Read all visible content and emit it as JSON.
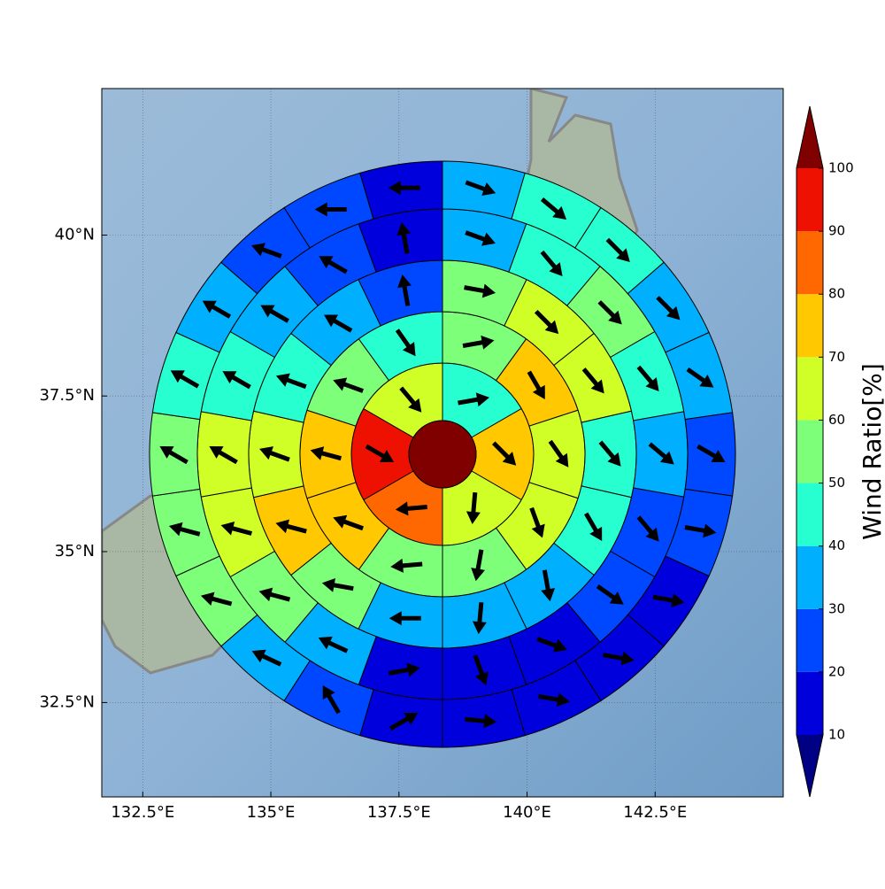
{
  "chart_data": {
    "type": "polar-wind-map",
    "projection": "mercator",
    "xlim": [
      131.7,
      145.0
    ],
    "ylim": [
      30.9,
      42.2
    ],
    "xticks": [
      {
        "value": 132.5,
        "label": "132.5°E"
      },
      {
        "value": 135,
        "label": "135°E"
      },
      {
        "value": 137.5,
        "label": "137.5°E"
      },
      {
        "value": 140,
        "label": "140°E"
      },
      {
        "value": 142.5,
        "label": "142.5°E"
      }
    ],
    "yticks": [
      {
        "value": 32.5,
        "label": "32.5°N"
      },
      {
        "value": 35,
        "label": "35°N"
      },
      {
        "value": 37.5,
        "label": "37.5°N"
      },
      {
        "value": 40,
        "label": "40°N"
      }
    ],
    "grid": true,
    "colorbar": {
      "label": "Wind Ratio[%]",
      "ticks": [
        10,
        20,
        30,
        40,
        50,
        60,
        70,
        80,
        90,
        100
      ],
      "colors": [
        "#0000dd",
        "#0048ff",
        "#00b0ff",
        "#27ffd0",
        "#7dff7a",
        "#d0ff27",
        "#ffc800",
        "#ff6800",
        "#ee1000"
      ],
      "under_color": "#000084",
      "over_color": "#800000"
    },
    "center_value": 105,
    "rings": [
      {
        "values": [
          45,
          75,
          65,
          85,
          95,
          65
        ],
        "directions": [
          80,
          135,
          185,
          265,
          120,
          140
        ]
      },
      {
        "values": [
          55,
          75,
          65,
          65,
          55,
          55,
          80,
          75,
          55,
          45
        ],
        "directions": [
          80,
          150,
          145,
          160,
          190,
          265,
          290,
          285,
          290,
          145
        ]
      },
      {
        "values": [
          55,
          65,
          65,
          45,
          45,
          35,
          35,
          35,
          55,
          75,
          65,
          45,
          35,
          25
        ],
        "directions": [
          100,
          135,
          140,
          140,
          150,
          170,
          185,
          270,
          280,
          285,
          290,
          290,
          300,
          350
        ]
      },
      {
        "values": [
          35,
          45,
          55,
          45,
          35,
          25,
          25,
          15,
          15,
          15,
          35,
          55,
          65,
          65,
          45,
          35,
          25,
          15
        ],
        "directions": [
          110,
          140,
          135,
          140,
          130,
          140,
          125,
          110,
          160,
          80,
          295,
          285,
          285,
          300,
          300,
          300,
          300,
          350
        ]
      },
      {
        "values": [
          35,
          45,
          45,
          35,
          35,
          25,
          25,
          15,
          15,
          15,
          15,
          15,
          25,
          35,
          55,
          55,
          55,
          45,
          35,
          25,
          25,
          15
        ],
        "directions": [
          110,
          130,
          135,
          135,
          125,
          120,
          100,
          100,
          100,
          100,
          95,
          60,
          330,
          295,
          285,
          285,
          300,
          300,
          300,
          290,
          270,
          270
        ]
      }
    ]
  }
}
